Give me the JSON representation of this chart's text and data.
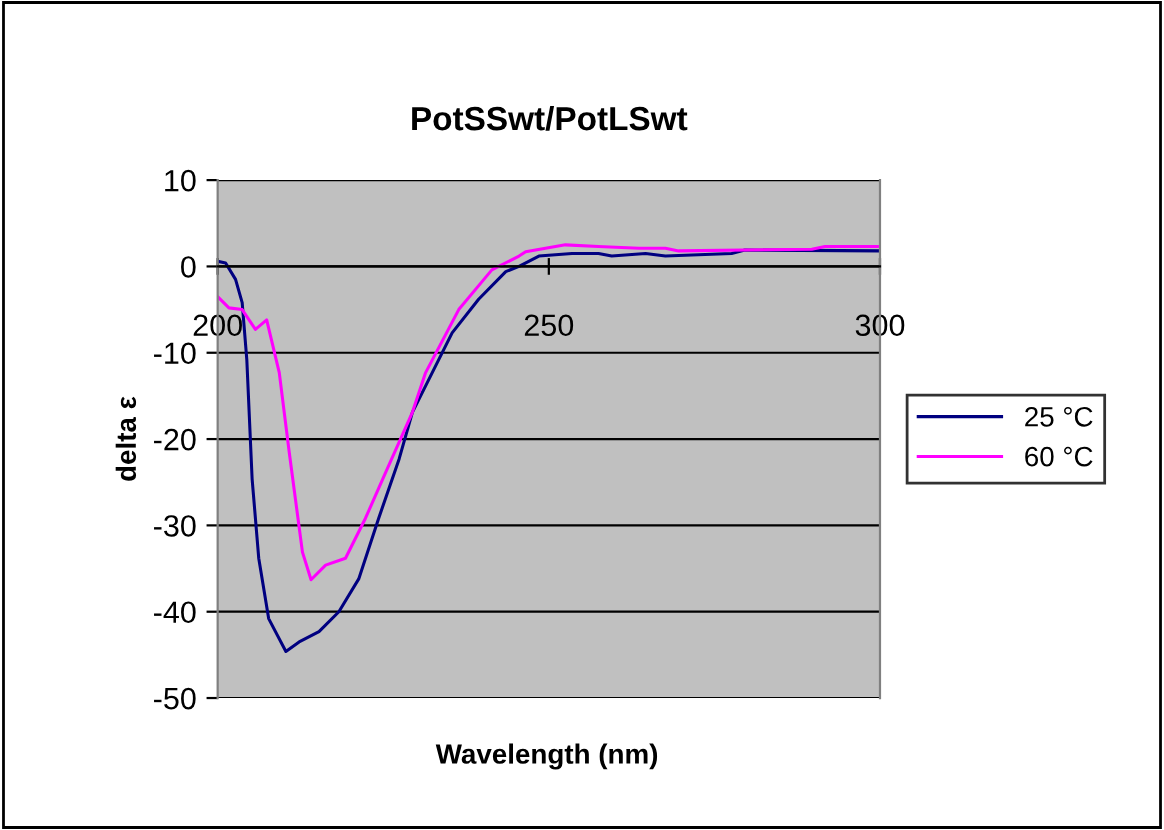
{
  "chart_data": {
    "type": "line",
    "title": "PotSSwt/PotLSwt",
    "xlabel": "Wavelength (nm)",
    "ylabel": "delta ε",
    "xlim": [
      200,
      300
    ],
    "xticks": [
      200,
      250,
      300
    ],
    "ylim": [
      -50,
      10
    ],
    "yticks": [
      -50,
      -40,
      -30,
      -20,
      -10,
      0,
      10
    ],
    "grid": "y",
    "legend": "right",
    "marker": "none",
    "line_style": "solid",
    "series": [
      {
        "name": "25 °C",
        "color": "#000080",
        "x": [
          200,
          201.2,
          202.7,
          203.7,
          204.4,
          205.2,
          206.2,
          207.7,
          210.3,
          212.3,
          215.3,
          218.3,
          221.3,
          224.3,
          227.4,
          229.4,
          232.4,
          235.4,
          239.4,
          243.5,
          245.5,
          248.5,
          253.5,
          257.5,
          259.5,
          264.6,
          267.6,
          277.6,
          279.6,
          299.7
        ],
        "values": [
          0.6,
          0.4,
          -1.5,
          -4.2,
          -10.8,
          -24.6,
          -33.8,
          -40.8,
          -44.6,
          -43.5,
          -42.3,
          -40,
          -36.2,
          -29.2,
          -22.3,
          -16.9,
          -12.3,
          -7.7,
          -3.8,
          -0.6,
          0,
          1.2,
          1.5,
          1.5,
          1.2,
          1.5,
          1.2,
          1.5,
          1.9,
          1.8
        ]
      },
      {
        "name": "60 °C",
        "color": "#ff00ff",
        "x": [
          200,
          201.7,
          203.7,
          205.7,
          207.4,
          209.3,
          210.8,
          212.8,
          214.1,
          216.3,
          219.3,
          222.3,
          225.4,
          229.4,
          231.4,
          236.4,
          241.4,
          245.5,
          246.5,
          252.5,
          257.5,
          263.6,
          267.6,
          269.6,
          289.7,
          291.7,
          299.7
        ],
        "values": [
          -3.5,
          -4.8,
          -5,
          -7.3,
          -6.2,
          -12.3,
          -21.5,
          -33.1,
          -36.3,
          -34.6,
          -33.8,
          -29.2,
          -23.8,
          -16.9,
          -12.3,
          -5,
          -0.4,
          1.2,
          1.7,
          2.5,
          2.3,
          2.1,
          2.1,
          1.8,
          2,
          2.3,
          2.3
        ]
      }
    ]
  }
}
